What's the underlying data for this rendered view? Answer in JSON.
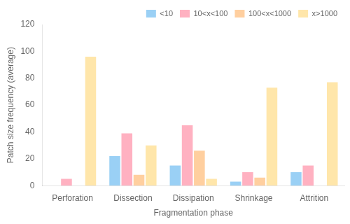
{
  "chart_data": {
    "type": "bar",
    "categories": [
      "Perforation",
      "Dissection",
      "Dissipation",
      "Shrinkage",
      "Attrition"
    ],
    "series": [
      {
        "name": "<10",
        "values": [
          0,
          22,
          15,
          3,
          10
        ]
      },
      {
        "name": "10<x<100",
        "values": [
          5,
          39,
          45,
          10,
          15
        ]
      },
      {
        "name": "100<x<1000",
        "values": [
          0,
          8,
          26,
          6,
          0
        ]
      },
      {
        "name": "x>1000",
        "values": [
          96,
          30,
          5,
          73,
          77
        ]
      }
    ],
    "xlabel": "Fragmentation phase",
    "ylabel": "Patch size frequency (average)",
    "ylim": [
      0,
      120
    ],
    "yticks": [
      0,
      20,
      40,
      60,
      80,
      100,
      120
    ],
    "grid": false,
    "legend": "upper right"
  }
}
